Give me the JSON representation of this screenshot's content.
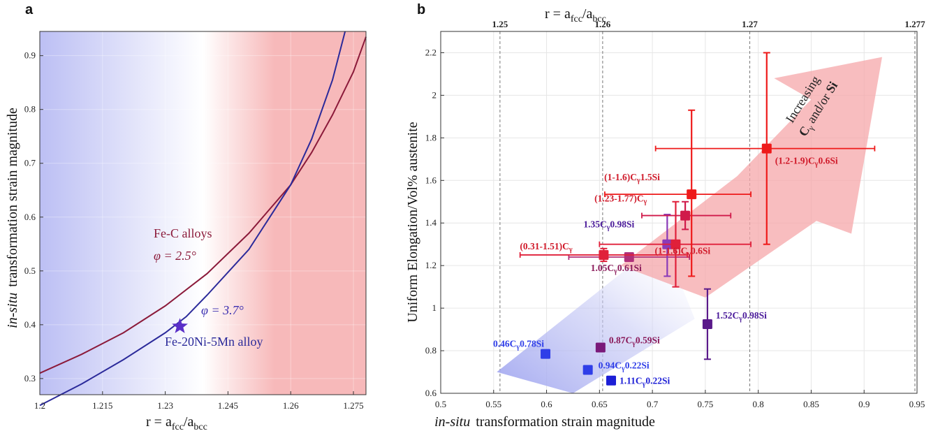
{
  "chart_data": [
    {
      "type": "line",
      "panel_label": "a",
      "xlabel": "r = a_fcc/a_bcc",
      "ylabel_italic": "in-situ",
      "ylabel_rest": "transformation strain magnitude",
      "xlim": [
        1.2,
        1.278
      ],
      "ylim": [
        0.27,
        0.945
      ],
      "xticks": [
        1.2,
        1.215,
        1.23,
        1.245,
        1.26,
        1.275
      ],
      "xtick_labels": [
        "1.2",
        "1.215",
        "1.23",
        "1.245",
        "1.26",
        "1.275"
      ],
      "yticks": [
        0.3,
        0.4,
        0.5,
        0.6,
        0.7,
        0.8,
        0.9
      ],
      "ytick_labels": [
        "0.3",
        "0.4",
        "0.5",
        "0.6",
        "0.7",
        "0.8",
        "0.9"
      ],
      "grid": true,
      "background_colors": {
        "low": "#bcbff4",
        "mid": "#ffffff",
        "high": "#f7b9ba"
      },
      "series": [
        {
          "name": "Fe-C alloys",
          "color": "#8b1a3a",
          "x": [
            1.2,
            1.21,
            1.22,
            1.23,
            1.24,
            1.25,
            1.26,
            1.265,
            1.27,
            1.275,
            1.278
          ],
          "y": [
            0.31,
            0.345,
            0.385,
            0.435,
            0.495,
            0.57,
            0.66,
            0.72,
            0.79,
            0.87,
            0.935
          ]
        },
        {
          "name": "Fe-20Ni-5Mn alloy",
          "color": "#2b2a9a",
          "x": [
            1.2,
            1.21,
            1.22,
            1.23,
            1.235,
            1.24,
            1.25,
            1.26,
            1.265,
            1.27,
            1.273
          ],
          "y": [
            0.25,
            0.29,
            0.335,
            0.385,
            0.415,
            0.455,
            0.54,
            0.66,
            0.745,
            0.855,
            0.945
          ]
        }
      ],
      "marker": {
        "x": 1.2335,
        "y": 0.397,
        "color": "#5a2fc8"
      },
      "annotations": [
        {
          "text": "Fe-C alloys",
          "color": "#8b1a3a"
        },
        {
          "text": "φ = 2.5°",
          "color": "#8b1a3a"
        },
        {
          "text": "φ = 3.7°",
          "color": "#3b2fb0"
        },
        {
          "text": "Fe-20Ni-5Mn alloy",
          "color": "#2b2a9a"
        }
      ]
    },
    {
      "type": "scatter",
      "panel_label": "b",
      "xlabel_italic": "in-situ",
      "xlabel_rest": "transformation strain magnitude",
      "ylabel": "Uniform Elongation/Vol% austenite",
      "top_axis_label": "r = a_fcc/a_bcc",
      "xlim": [
        0.5,
        0.95
      ],
      "ylim": [
        0.6,
        2.3
      ],
      "xticks": [
        0.5,
        0.55,
        0.6,
        0.65,
        0.7,
        0.75,
        0.8,
        0.85,
        0.9,
        0.95
      ],
      "xtick_labels": [
        "0.5",
        "0.55",
        "0.6",
        "0.65",
        "0.7",
        "0.75",
        "0.8",
        "0.85",
        "0.9",
        "0.95"
      ],
      "yticks": [
        0.6,
        0.8,
        1,
        1.2,
        1.4,
        1.6,
        1.8,
        2,
        2.2
      ],
      "ytick_labels": [
        "0.6",
        "0.8",
        "1",
        "1.2",
        "1.4",
        "1.6",
        "1.8",
        "2",
        "2.2"
      ],
      "top_ticks": [
        {
          "label": "1.25",
          "x": 0.556
        },
        {
          "label": "1.26",
          "x": 0.653
        },
        {
          "label": "1.27",
          "x": 0.792
        },
        {
          "label": "1.277",
          "x": 0.948
        }
      ],
      "arrow_text_line1": "Increasing",
      "arrow_text_line2": "C",
      "arrow_text_sub": "γ",
      "arrow_text_line3": "and/or",
      "arrow_text_line4": "Si",
      "points": [
        {
          "label": "0.46C",
          "label_tail": "0.78Si",
          "x": 0.599,
          "y": 0.785,
          "color": "#2f3ee8",
          "label_color": "#2f3ee8"
        },
        {
          "label": "0.94C",
          "label_tail": "0.22Si",
          "x": 0.639,
          "y": 0.71,
          "color": "#2f3ee8",
          "label_color": "#2f3ee8"
        },
        {
          "label": "1.11C",
          "label_tail": "0.22Si",
          "x": 0.661,
          "y": 0.66,
          "color": "#1d1fd6",
          "label_color": "#1d1fd6"
        },
        {
          "label": "0.87C",
          "label_tail": "0.59Si",
          "x": 0.651,
          "y": 0.815,
          "color": "#7a1a7a",
          "label_color": "#8a1a5a"
        },
        {
          "label": "1.52C",
          "label_tail": "0.98Si",
          "x": 0.752,
          "y": 0.925,
          "color": "#5a1a8a",
          "label_color": "#4a1a9a",
          "yerr": [
            0.76,
            1.09
          ]
        },
        {
          "label": "1.05C",
          "label_tail": "0.61Si",
          "x": 0.678,
          "y": 1.24,
          "color": "#b0307a",
          "label_color": "#8a1a5a",
          "xerr": [
            0.621,
            0.735
          ]
        },
        {
          "label": "1.35C",
          "label_tail": "0.98Si",
          "x": 0.714,
          "y": 1.3,
          "color": "#8a3ab8",
          "label_color": "#4a1a9a",
          "yerr": [
            1.15,
            1.44
          ]
        },
        {
          "label": "(1-1.6)C",
          "label_tail": "0.6Si",
          "x": 0.722,
          "y": 1.3,
          "color": "#e0203a",
          "label_color": "#d01a2a",
          "xerr": [
            0.65,
            0.793
          ],
          "yerr": [
            1.1,
            1.5
          ]
        },
        {
          "label": "(0.31-1.51)C",
          "label_tail": "",
          "x": 0.654,
          "y": 1.25,
          "color": "#e0203a",
          "label_color": "#d01a2a",
          "xerr": [
            0.575,
            0.733
          ],
          "yerr": [
            1.22,
            1.28
          ]
        },
        {
          "label": "(1.23-1.77)C",
          "label_tail": "",
          "x": 0.731,
          "y": 1.435,
          "color": "#d01a4a",
          "label_color": "#d01a2a",
          "xerr": [
            0.69,
            0.774
          ],
          "yerr": [
            1.37,
            1.5
          ]
        },
        {
          "label": "(1-1.6)C",
          "label_tail": "1.5Si",
          "x": 0.737,
          "y": 1.535,
          "color": "#ee1a1a",
          "label_color": "#d01a2a",
          "xerr": [
            0.655,
            0.793
          ],
          "yerr": [
            1.15,
            1.93
          ]
        },
        {
          "label": "(1.2-1.9)C",
          "label_tail": "0.6Si",
          "x": 0.808,
          "y": 1.75,
          "color": "#ee1a1a",
          "label_color": "#d01a2a",
          "xerr": [
            0.703,
            0.91
          ],
          "yerr": [
            1.3,
            2.2
          ]
        }
      ]
    }
  ]
}
